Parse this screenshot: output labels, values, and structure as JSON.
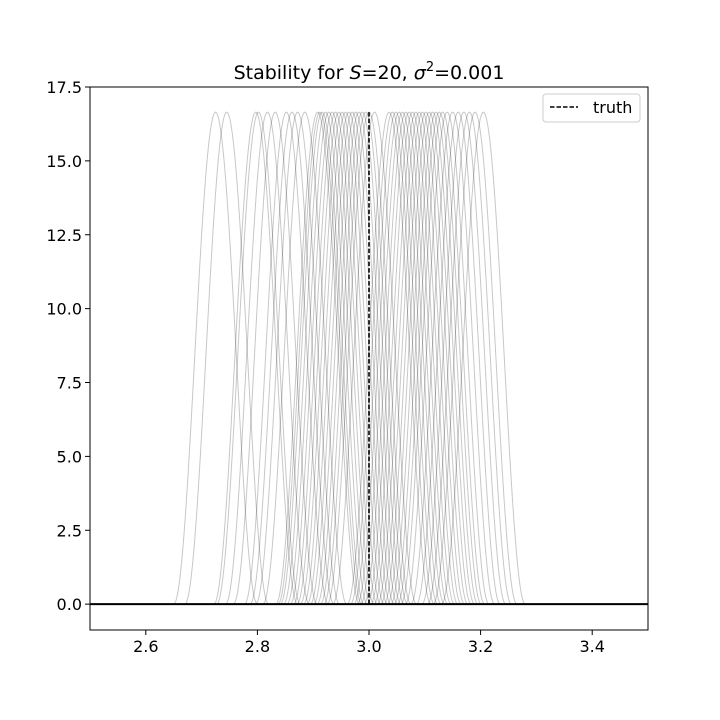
{
  "chart_data": {
    "type": "line",
    "title": {
      "prefix": "Stability for ",
      "s_symbol": "S",
      "s_value": "=20, ",
      "sigma_symbol": "σ",
      "sigma_exp": "2",
      "sigma_value": "=0.001"
    },
    "xlabel": "",
    "ylabel": "",
    "xlim": [
      2.5,
      3.5
    ],
    "ylim": [
      -0.875,
      17.5
    ],
    "xticks": [
      2.6,
      2.8,
      3.0,
      3.2,
      3.4
    ],
    "xtick_labels": [
      "2.6",
      "2.8",
      "3.0",
      "3.2",
      "3.4"
    ],
    "yticks": [
      0.0,
      2.5,
      5.0,
      7.5,
      10.0,
      12.5,
      15.0,
      17.5
    ],
    "ytick_labels": [
      "0.0",
      "2.5",
      "5.0",
      "7.5",
      "10.0",
      "12.5",
      "15.0",
      "17.5"
    ],
    "grid": false,
    "legend": {
      "position": "top-right",
      "entries": [
        "truth"
      ]
    },
    "truth": {
      "x": 3.0,
      "y_range": [
        0,
        16.7
      ],
      "style": "dashed",
      "color": "#000000"
    },
    "baseline": {
      "y": 0.0,
      "color": "#000000"
    },
    "posterior_curves": {
      "color": "#000000",
      "opacity": 0.22,
      "peak": 16.65,
      "half_width": 0.075,
      "centers": [
        2.725,
        2.745,
        2.797,
        2.802,
        2.818,
        2.832,
        2.852,
        2.862,
        2.872,
        2.885,
        2.908,
        2.912,
        2.916,
        2.922,
        2.928,
        2.934,
        2.94,
        2.946,
        2.952,
        2.958,
        2.964,
        2.97,
        2.976,
        2.982,
        2.988,
        2.994,
        3.0,
        3.01,
        3.036,
        3.042,
        3.048,
        3.054,
        3.06,
        3.066,
        3.072,
        3.078,
        3.084,
        3.09,
        3.096,
        3.102,
        3.108,
        3.114,
        3.12,
        3.126,
        3.132,
        3.14,
        3.15,
        3.16,
        3.17,
        3.18,
        3.19,
        3.205
      ]
    }
  }
}
